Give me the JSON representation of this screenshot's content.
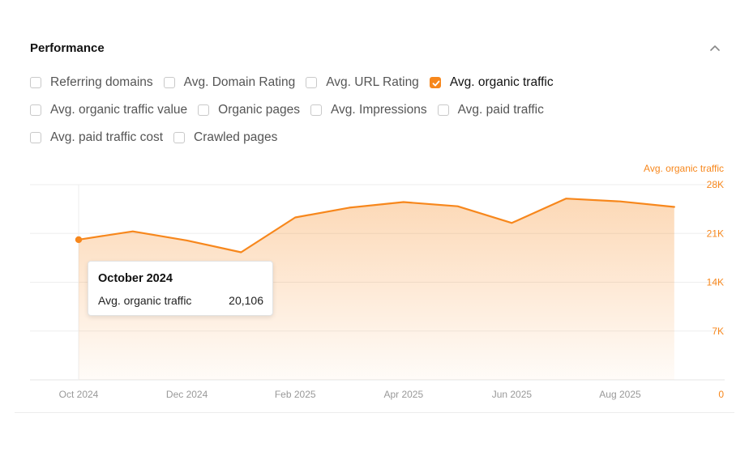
{
  "section": {
    "title": "Performance"
  },
  "metrics": [
    {
      "label": "Referring domains",
      "checked": false
    },
    {
      "label": "Avg. Domain Rating",
      "checked": false
    },
    {
      "label": "Avg. URL Rating",
      "checked": false
    },
    {
      "label": "Avg. organic traffic",
      "checked": true
    },
    {
      "label": "Avg. organic traffic value",
      "checked": false
    },
    {
      "label": "Organic pages",
      "checked": false
    },
    {
      "label": "Avg. Impressions",
      "checked": false
    },
    {
      "label": "Avg. paid traffic",
      "checked": false
    },
    {
      "label": "Avg. paid traffic cost",
      "checked": false
    },
    {
      "label": "Crawled pages",
      "checked": false
    }
  ],
  "tooltip": {
    "title": "October 2024",
    "label": "Avg. organic traffic",
    "value": "20,106"
  },
  "colors": {
    "accent": "#f7871c",
    "grid": "#eeeeee",
    "tick": "#999999"
  },
  "icons": {
    "collapse": "chevron-up-icon",
    "check": "check-icon"
  },
  "chart_data": {
    "type": "area",
    "series": [
      {
        "name": "Avg. organic traffic",
        "x": [
          "2024-10",
          "2024-11",
          "2024-12",
          "2025-01",
          "2025-02",
          "2025-03",
          "2025-04",
          "2025-05",
          "2025-06",
          "2025-07",
          "2025-08",
          "2025-09"
        ],
        "values": [
          20106,
          21300,
          20000,
          18300,
          23300,
          24700,
          25500,
          24900,
          22500,
          26000,
          25600,
          24800
        ]
      }
    ],
    "x_tick_labels": [
      "Oct 2024",
      "Dec 2024",
      "Feb 2025",
      "Apr 2025",
      "Jun 2025",
      "Aug 2025"
    ],
    "x_tick_values": [
      "2024-10",
      "2024-12",
      "2025-02",
      "2025-04",
      "2025-06",
      "2025-08"
    ],
    "y_tick_labels": [
      "0",
      "7K",
      "14K",
      "21K",
      "28K"
    ],
    "y_tick_values": [
      0,
      7000,
      14000,
      21000,
      28000
    ],
    "ylim": [
      0,
      28000
    ],
    "y_axis_title": "Avg. organic traffic",
    "y_axis_side": "right",
    "grid": true,
    "highlighted": "2024-10"
  }
}
